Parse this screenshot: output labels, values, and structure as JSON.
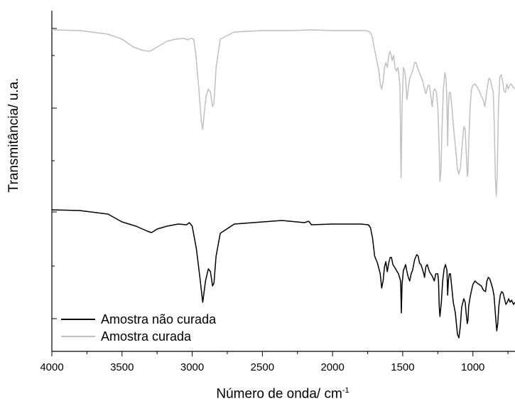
{
  "chart_data": {
    "type": "line",
    "title": "",
    "xlabel_main": "Número de onda/ cm",
    "xlabel_sup": "-1",
    "ylabel": "Transmitância/ u.a.",
    "xlim": [
      4000,
      700
    ],
    "x_reversed": true,
    "x_ticks": [
      "4000",
      "3500",
      "3000",
      "2500",
      "2000",
      "1500",
      "1000"
    ],
    "y_tick_labels_shown": false,
    "legend_position": "bottom-left",
    "series": [
      {
        "name": "Amostra não curada",
        "color": "#000000",
        "points": [
          [
            4000,
            295
          ],
          [
            3800,
            296
          ],
          [
            3600,
            301
          ],
          [
            3500,
            312
          ],
          [
            3400,
            318
          ],
          [
            3320,
            325
          ],
          [
            3290,
            327
          ],
          [
            3250,
            322
          ],
          [
            3180,
            318
          ],
          [
            3100,
            315
          ],
          [
            3040,
            316
          ],
          [
            3020,
            313
          ],
          [
            3000,
            318
          ],
          [
            2970,
            350
          ],
          [
            2945,
            390
          ],
          [
            2925,
            425
          ],
          [
            2905,
            395
          ],
          [
            2885,
            378
          ],
          [
            2870,
            382
          ],
          [
            2855,
            402
          ],
          [
            2845,
            398
          ],
          [
            2830,
            360
          ],
          [
            2800,
            328
          ],
          [
            2700,
            315
          ],
          [
            2500,
            312
          ],
          [
            2360,
            310
          ],
          [
            2200,
            313
          ],
          [
            2170,
            311
          ],
          [
            2150,
            316
          ],
          [
            2000,
            315
          ],
          [
            1800,
            315
          ],
          [
            1745,
            316
          ],
          [
            1730,
            320
          ],
          [
            1715,
            335
          ],
          [
            1700,
            360
          ],
          [
            1680,
            370
          ],
          [
            1660,
            385
          ],
          [
            1650,
            405
          ],
          [
            1640,
            395
          ],
          [
            1630,
            375
          ],
          [
            1620,
            368
          ],
          [
            1610,
            382
          ],
          [
            1600,
            370
          ],
          [
            1590,
            362
          ],
          [
            1580,
            362
          ],
          [
            1570,
            372
          ],
          [
            1560,
            375
          ],
          [
            1545,
            380
          ],
          [
            1530,
            385
          ],
          [
            1515,
            395
          ],
          [
            1510,
            440
          ],
          [
            1505,
            400
          ],
          [
            1495,
            380
          ],
          [
            1490,
            378
          ],
          [
            1480,
            372
          ],
          [
            1470,
            382
          ],
          [
            1460,
            390
          ],
          [
            1450,
            395
          ],
          [
            1440,
            385
          ],
          [
            1430,
            380
          ],
          [
            1415,
            365
          ],
          [
            1400,
            358
          ],
          [
            1390,
            360
          ],
          [
            1380,
            370
          ],
          [
            1370,
            372
          ],
          [
            1360,
            378
          ],
          [
            1350,
            385
          ],
          [
            1345,
            390
          ],
          [
            1335,
            375
          ],
          [
            1325,
            372
          ],
          [
            1310,
            382
          ],
          [
            1300,
            385
          ],
          [
            1290,
            388
          ],
          [
            1275,
            395
          ],
          [
            1265,
            385
          ],
          [
            1250,
            385
          ],
          [
            1245,
            395
          ],
          [
            1240,
            430
          ],
          [
            1235,
            445
          ],
          [
            1225,
            425
          ],
          [
            1215,
            395
          ],
          [
            1205,
            378
          ],
          [
            1195,
            372
          ],
          [
            1185,
            380
          ],
          [
            1180,
            415
          ],
          [
            1175,
            395
          ],
          [
            1168,
            385
          ],
          [
            1160,
            385
          ],
          [
            1150,
            405
          ],
          [
            1140,
            425
          ],
          [
            1125,
            440
          ],
          [
            1110,
            470
          ],
          [
            1100,
            475
          ],
          [
            1090,
            460
          ],
          [
            1080,
            432
          ],
          [
            1065,
            420
          ],
          [
            1055,
            425
          ],
          [
            1048,
            440
          ],
          [
            1040,
            455
          ],
          [
            1035,
            450
          ],
          [
            1030,
            430
          ],
          [
            1020,
            418
          ],
          [
            1010,
            408
          ],
          [
            1000,
            400
          ],
          [
            985,
            395
          ],
          [
            970,
            398
          ],
          [
            955,
            400
          ],
          [
            940,
            402
          ],
          [
            925,
            408
          ],
          [
            910,
            410
          ],
          [
            900,
            395
          ],
          [
            890,
            390
          ],
          [
            880,
            392
          ],
          [
            870,
            398
          ],
          [
            860,
            405
          ],
          [
            850,
            415
          ],
          [
            840,
            440
          ],
          [
            830,
            465
          ],
          [
            823,
            455
          ],
          [
            815,
            430
          ],
          [
            805,
            415
          ],
          [
            795,
            410
          ],
          [
            785,
            412
          ],
          [
            775,
            420
          ],
          [
            765,
            428
          ],
          [
            755,
            425
          ],
          [
            745,
            420
          ],
          [
            735,
            425
          ],
          [
            725,
            422
          ],
          [
            710,
            428
          ],
          [
            700,
            425
          ]
        ]
      },
      {
        "name": "Amostra curada",
        "color": "#c0c0c0",
        "points": [
          [
            4000,
            42
          ],
          [
            3800,
            43
          ],
          [
            3600,
            48
          ],
          [
            3500,
            55
          ],
          [
            3420,
            66
          ],
          [
            3350,
            71
          ],
          [
            3300,
            72
          ],
          [
            3250,
            66
          ],
          [
            3180,
            58
          ],
          [
            3120,
            55
          ],
          [
            3060,
            54
          ],
          [
            3030,
            56
          ],
          [
            3010,
            54
          ],
          [
            2990,
            55
          ],
          [
            2975,
            75
          ],
          [
            2955,
            120
          ],
          [
            2935,
            170
          ],
          [
            2925,
            182
          ],
          [
            2915,
            160
          ],
          [
            2900,
            135
          ],
          [
            2885,
            125
          ],
          [
            2870,
            130
          ],
          [
            2855,
            150
          ],
          [
            2845,
            145
          ],
          [
            2830,
            95
          ],
          [
            2800,
            55
          ],
          [
            2700,
            45
          ],
          [
            2500,
            43
          ],
          [
            2300,
            43
          ],
          [
            2150,
            42
          ],
          [
            2000,
            43
          ],
          [
            1850,
            43
          ],
          [
            1760,
            43
          ],
          [
            1735,
            45
          ],
          [
            1720,
            50
          ],
          [
            1700,
            70
          ],
          [
            1685,
            85
          ],
          [
            1670,
            100
          ],
          [
            1660,
            118
          ],
          [
            1650,
            125
          ],
          [
            1640,
            115
          ],
          [
            1630,
            95
          ],
          [
            1620,
            88
          ],
          [
            1610,
            95
          ],
          [
            1600,
            80
          ],
          [
            1592,
            72
          ],
          [
            1585,
            75
          ],
          [
            1575,
            85
          ],
          [
            1565,
            78
          ],
          [
            1555,
            95
          ],
          [
            1545,
            100
          ],
          [
            1535,
            95
          ],
          [
            1530,
            100
          ],
          [
            1520,
            120
          ],
          [
            1512,
            250
          ],
          [
            1505,
            150
          ],
          [
            1495,
            95
          ],
          [
            1485,
            100
          ],
          [
            1478,
            115
          ],
          [
            1470,
            140
          ],
          [
            1460,
            125
          ],
          [
            1450,
            110
          ],
          [
            1440,
            105
          ],
          [
            1430,
            100
          ],
          [
            1415,
            88
          ],
          [
            1405,
            88
          ],
          [
            1395,
            95
          ],
          [
            1385,
            100
          ],
          [
            1370,
            108
          ],
          [
            1360,
            112
          ],
          [
            1345,
            125
          ],
          [
            1335,
            132
          ],
          [
            1320,
            120
          ],
          [
            1310,
            120
          ],
          [
            1300,
            135
          ],
          [
            1290,
            150
          ],
          [
            1280,
            128
          ],
          [
            1270,
            125
          ],
          [
            1260,
            130
          ],
          [
            1250,
            150
          ],
          [
            1240,
            210
          ],
          [
            1235,
            255
          ],
          [
            1228,
            240
          ],
          [
            1220,
            180
          ],
          [
            1210,
            125
          ],
          [
            1200,
            102
          ],
          [
            1192,
            110
          ],
          [
            1185,
            140
          ],
          [
            1180,
            205
          ],
          [
            1174,
            150
          ],
          [
            1168,
            130
          ],
          [
            1160,
            130
          ],
          [
            1150,
            150
          ],
          [
            1140,
            175
          ],
          [
            1125,
            205
          ],
          [
            1110,
            238
          ],
          [
            1100,
            245
          ],
          [
            1088,
            235
          ],
          [
            1075,
            200
          ],
          [
            1065,
            178
          ],
          [
            1055,
            182
          ],
          [
            1047,
            215
          ],
          [
            1040,
            248
          ],
          [
            1035,
            243
          ],
          [
            1030,
            205
          ],
          [
            1020,
            150
          ],
          [
            1010,
            125
          ],
          [
            1000,
            120
          ],
          [
            985,
            118
          ],
          [
            970,
            122
          ],
          [
            955,
            128
          ],
          [
            940,
            135
          ],
          [
            928,
            140
          ],
          [
            915,
            150
          ],
          [
            905,
            135
          ],
          [
            895,
            120
          ],
          [
            885,
            110
          ],
          [
            875,
            112
          ],
          [
            865,
            122
          ],
          [
            855,
            130
          ],
          [
            848,
            175
          ],
          [
            840,
            250
          ],
          [
            833,
            276
          ],
          [
            826,
            240
          ],
          [
            818,
            150
          ],
          [
            808,
            108
          ],
          [
            798,
            105
          ],
          [
            788,
            115
          ],
          [
            778,
            128
          ],
          [
            768,
            130
          ],
          [
            758,
            118
          ],
          [
            748,
            125
          ],
          [
            738,
            120
          ],
          [
            728,
            118
          ],
          [
            715,
            122
          ],
          [
            700,
            125
          ]
        ]
      }
    ]
  }
}
